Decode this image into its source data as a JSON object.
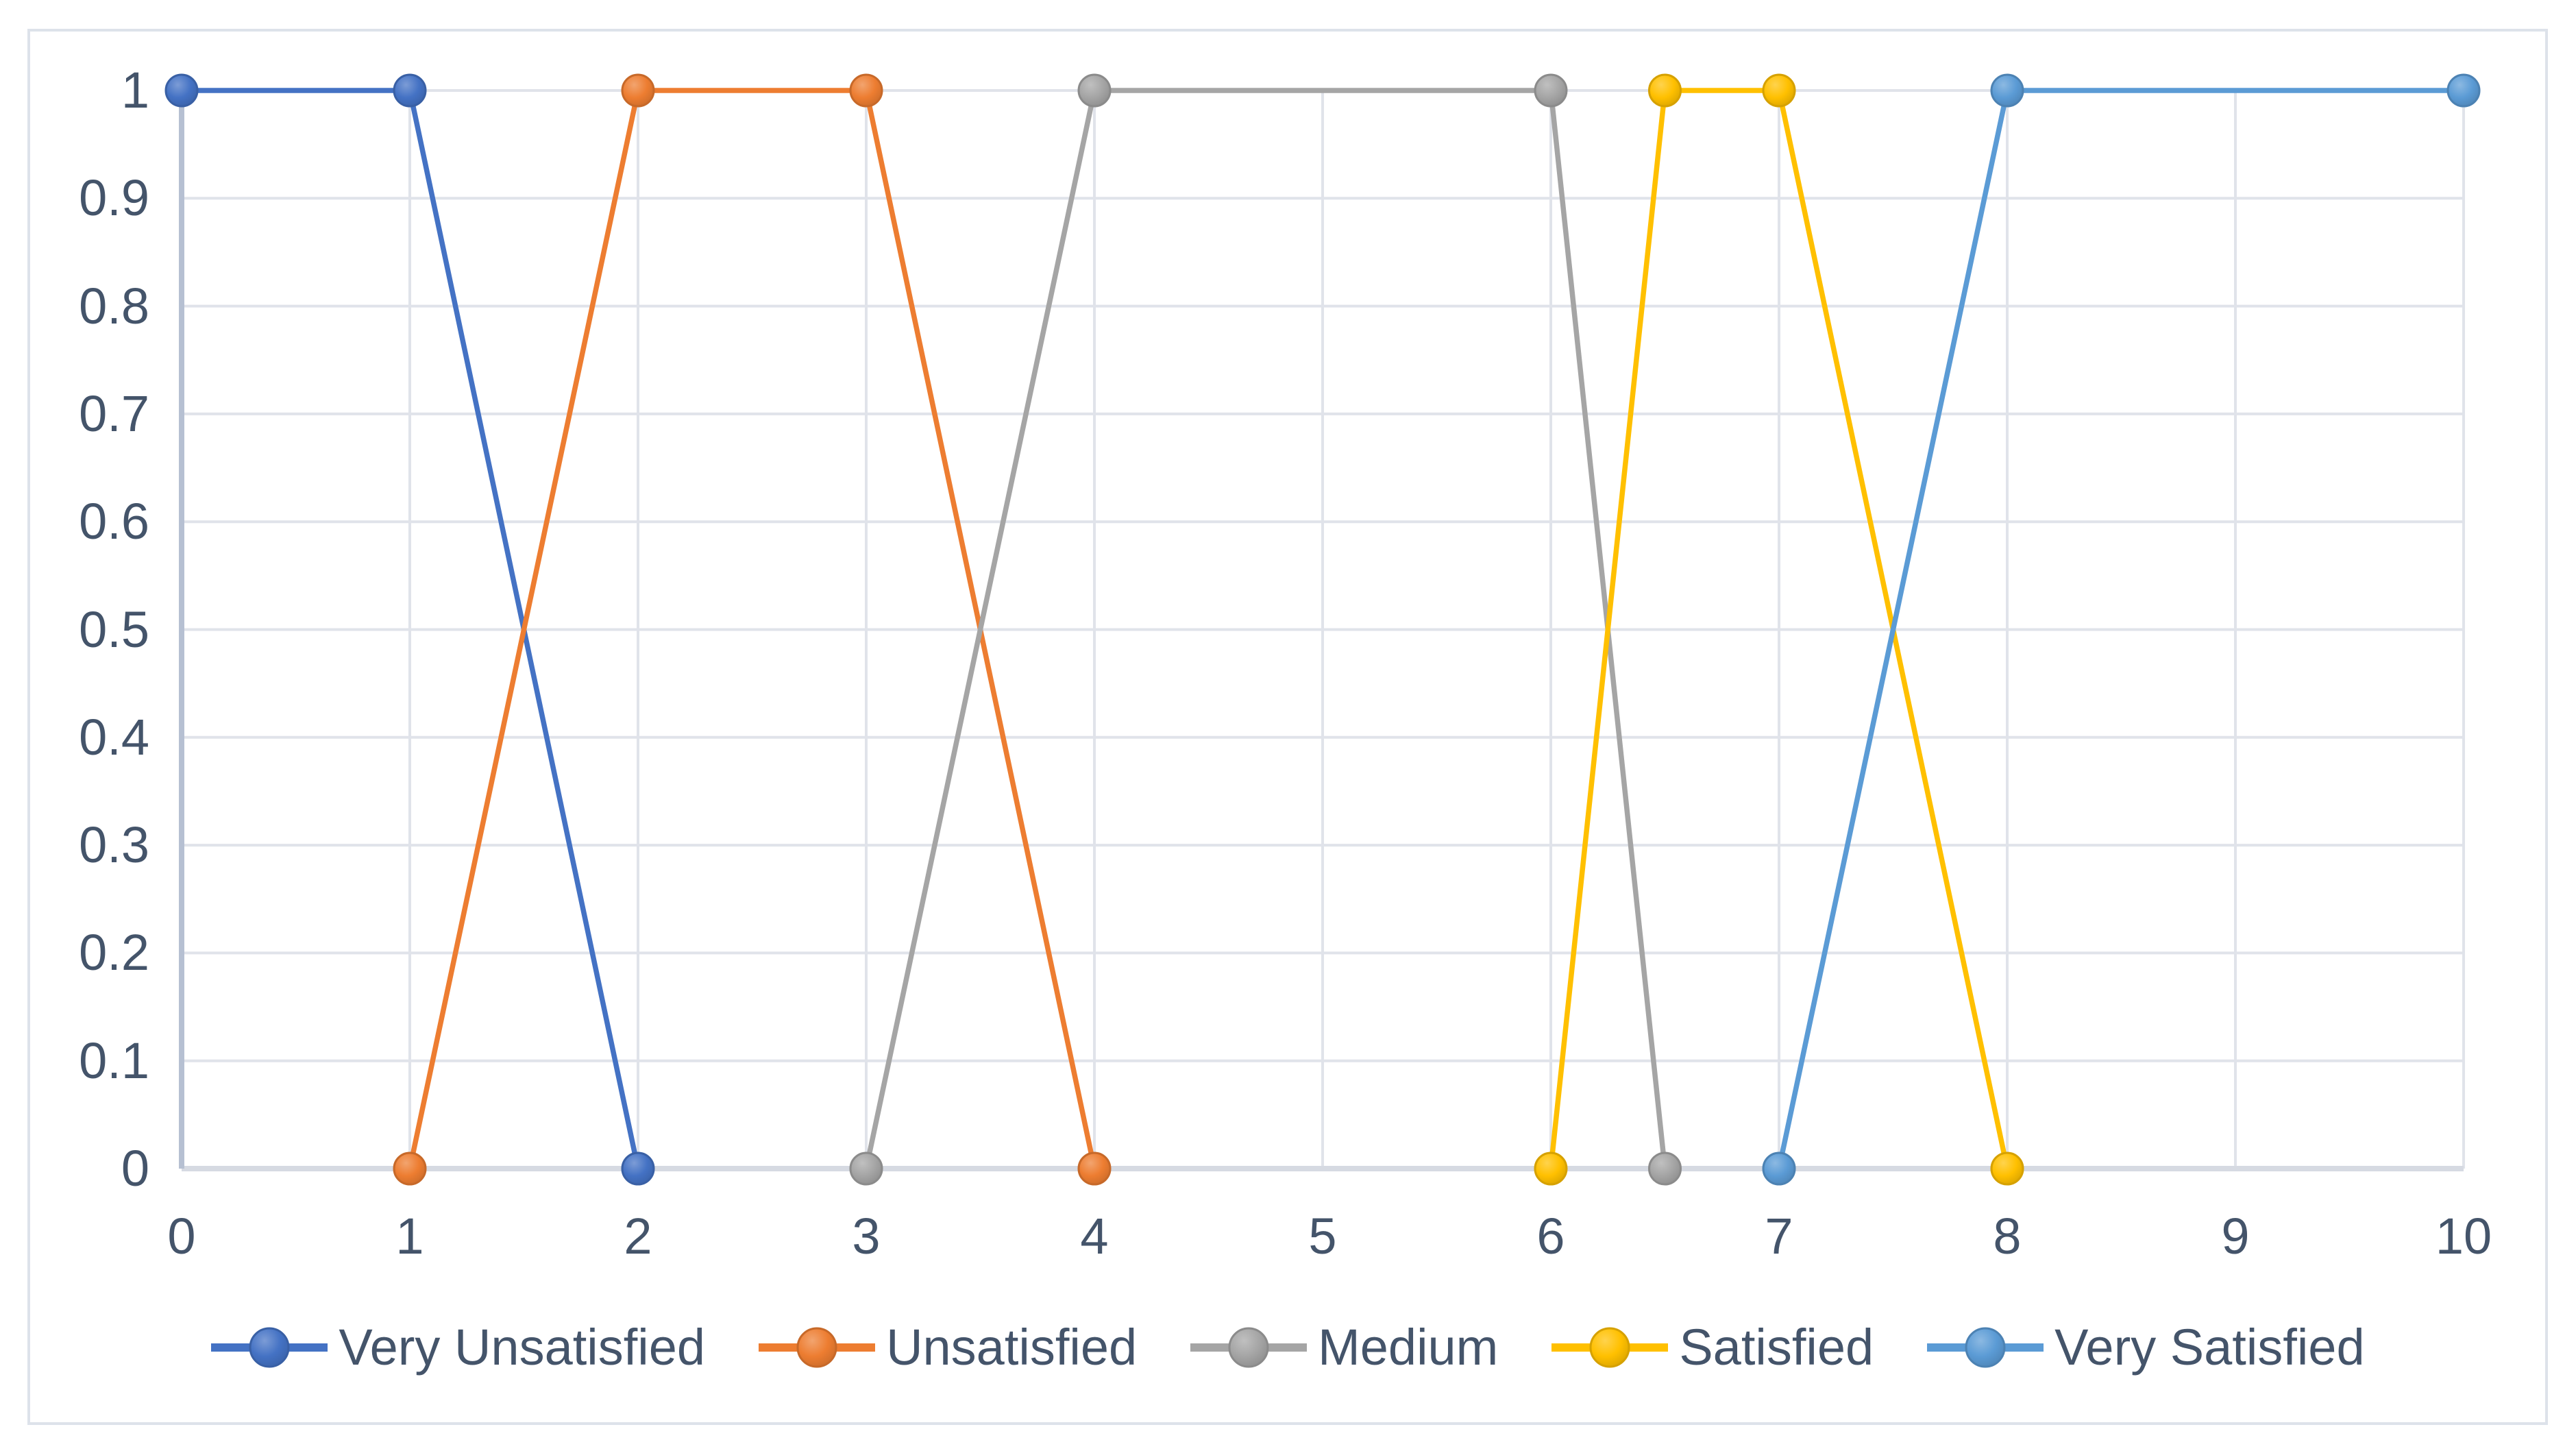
{
  "chart_data": {
    "type": "line",
    "title": "",
    "xlabel": "",
    "ylabel": "",
    "xlim": [
      0,
      10
    ],
    "ylim": [
      0,
      1
    ],
    "grid": true,
    "legend_position": "bottom",
    "x_ticks": [
      {
        "v": 0,
        "label": "0"
      },
      {
        "v": 1,
        "label": "1"
      },
      {
        "v": 2,
        "label": "2"
      },
      {
        "v": 3,
        "label": "3"
      },
      {
        "v": 4,
        "label": "4"
      },
      {
        "v": 5,
        "label": "5"
      },
      {
        "v": 6,
        "label": "6"
      },
      {
        "v": 7,
        "label": "7"
      },
      {
        "v": 8,
        "label": "8"
      },
      {
        "v": 9,
        "label": "9"
      },
      {
        "v": 10,
        "label": "10"
      }
    ],
    "y_ticks": [
      {
        "v": 0,
        "label": "0"
      },
      {
        "v": 0.1,
        "label": "0.1"
      },
      {
        "v": 0.2,
        "label": "0.2"
      },
      {
        "v": 0.3,
        "label": "0.3"
      },
      {
        "v": 0.4,
        "label": "0.4"
      },
      {
        "v": 0.5,
        "label": "0.5"
      },
      {
        "v": 0.6,
        "label": "0.6"
      },
      {
        "v": 0.7,
        "label": "0.7"
      },
      {
        "v": 0.8,
        "label": "0.8"
      },
      {
        "v": 0.9,
        "label": "0.9"
      },
      {
        "v": 1,
        "label": "1"
      }
    ],
    "series": [
      {
        "name": "Very Unsatisfied",
        "color": "#4472C4",
        "points": [
          [
            0,
            1
          ],
          [
            1,
            1
          ],
          [
            2,
            0
          ]
        ]
      },
      {
        "name": "Unsatisfied",
        "color": "#ED7D31",
        "points": [
          [
            1,
            0
          ],
          [
            2,
            1
          ],
          [
            3,
            1
          ],
          [
            4,
            0
          ]
        ]
      },
      {
        "name": "Medium",
        "color": "#A5A5A5",
        "points": [
          [
            3,
            0
          ],
          [
            4,
            1
          ],
          [
            6,
            1
          ],
          [
            6.5,
            0
          ]
        ]
      },
      {
        "name": "Satisfied",
        "color": "#FFC000",
        "points": [
          [
            6,
            0
          ],
          [
            6.5,
            1
          ],
          [
            7,
            1
          ],
          [
            8,
            0
          ]
        ]
      },
      {
        "name": "Very Satisfied",
        "color": "#5B9BD5",
        "points": [
          [
            7,
            0
          ],
          [
            8,
            1
          ],
          [
            10,
            1
          ]
        ]
      }
    ]
  },
  "colors": {
    "text": "#44546A",
    "gridline": "#E0E3EA",
    "x_axis_line": "#D6DAE2",
    "y_axis_line": "#B6C0D2",
    "frame_border": "#DDE2EA",
    "background": "#FFFFFF"
  }
}
